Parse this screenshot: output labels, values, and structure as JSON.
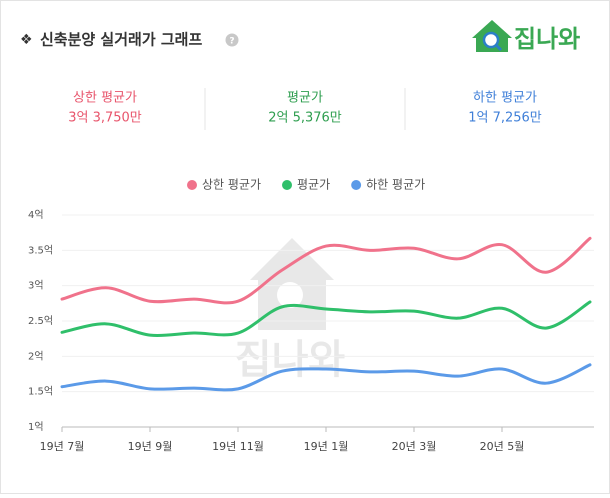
{
  "header": {
    "bullet": "❖",
    "title": "신축분양 실거래가 그래프",
    "help": "?",
    "logo": "집나와"
  },
  "summary": [
    {
      "label": "상한 평균가",
      "value": "3억 3,750만",
      "color": "#e8546b"
    },
    {
      "label": "평균가",
      "value": "2억 5,376만",
      "color": "#2e9e4f"
    },
    {
      "label": "하한 평균가",
      "value": "1억 7,256만",
      "color": "#3f7fd8"
    }
  ],
  "chart_data": {
    "type": "line",
    "categories": [
      "19년 7월",
      null,
      "19년 9월",
      null,
      "19년 11월",
      null,
      "19년 1월",
      null,
      "20년 3월",
      null,
      "20년 5월",
      null,
      null
    ],
    "series": [
      {
        "name": "상한 평균가",
        "color": "#f0728b",
        "values": [
          2.81,
          2.97,
          2.78,
          2.81,
          2.78,
          3.22,
          3.56,
          3.5,
          3.53,
          3.38,
          3.58,
          3.19,
          3.67
        ]
      },
      {
        "name": "평균가",
        "color": "#2fbf6a",
        "values": [
          2.34,
          2.46,
          2.3,
          2.33,
          2.33,
          2.7,
          2.67,
          2.63,
          2.64,
          2.54,
          2.68,
          2.4,
          2.77
        ]
      },
      {
        "name": "하한 평균가",
        "color": "#5b9ae8",
        "values": [
          1.57,
          1.65,
          1.54,
          1.55,
          1.54,
          1.79,
          1.82,
          1.78,
          1.79,
          1.72,
          1.82,
          1.62,
          1.88
        ]
      }
    ],
    "ylim": [
      1,
      4
    ],
    "yticks": [
      {
        "value": 1,
        "label": "1억"
      },
      {
        "value": 1.5,
        "label": "1.5억"
      },
      {
        "value": 2,
        "label": "2억"
      },
      {
        "value": 2.5,
        "label": "2.5억"
      },
      {
        "value": 3,
        "label": "3억"
      },
      {
        "value": 3.5,
        "label": "3.5억"
      },
      {
        "value": 4,
        "label": "4억"
      }
    ],
    "grid": true,
    "legend": "top"
  }
}
